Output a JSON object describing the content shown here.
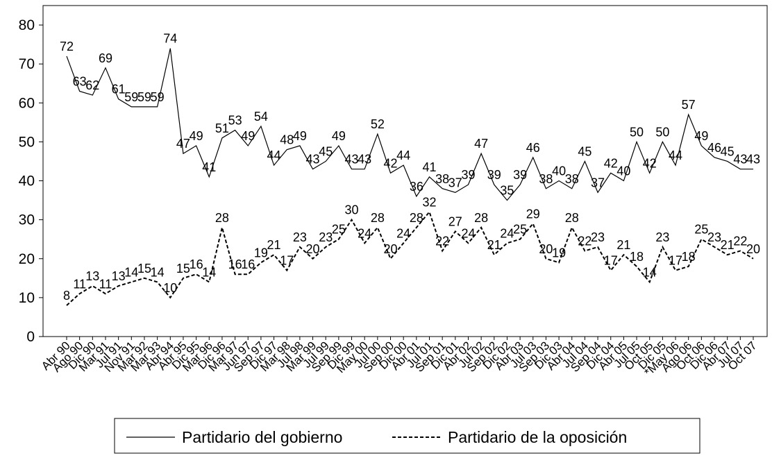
{
  "chart_data": {
    "type": "line",
    "categories": [
      "Abr 90",
      "Ago 90",
      "Dic 90",
      "Mar 91",
      "Jul 91",
      "Nov 91",
      "Mar 92",
      "Mar 93",
      "Abr 94",
      "Abr 95",
      "Dic 95",
      "Mar 96",
      "Dic 96",
      "Mar 97",
      "Jun 97",
      "Sep 97",
      "Dic 97",
      "Mar 98",
      "Jul 98",
      "Mar 99",
      "Jul 99",
      "Sep 99",
      "Dic 99",
      "May 00",
      "Jul 00",
      "Sep 00",
      "Dic 00",
      "Abr 01",
      "Jul 01",
      "Sep 01",
      "Dic 01",
      "Abr 02",
      "Jul 02",
      "Sep 02",
      "Dic 02",
      "Abr 03",
      "Jul 03",
      "Sep 03",
      "Dic 03",
      "Abr 04",
      "Jul 04",
      "Sep 04",
      "Dic 04",
      "Abr 05",
      "Jul 05",
      "Oct 05",
      "Dic 05",
      "*May 06",
      "Ago 06",
      "Oct 06",
      "Dic 06",
      "Abr 07",
      "Jul 07",
      "Oct 07"
    ],
    "series": [
      {
        "name": "Partidario del gobierno",
        "color": "#000000",
        "line_style": "solid",
        "values": [
          72,
          63,
          62,
          69,
          61,
          59,
          59,
          59,
          74,
          47,
          49,
          41,
          51,
          53,
          49,
          54,
          44,
          48,
          49,
          43,
          45,
          49,
          43,
          43,
          52,
          42,
          44,
          36,
          41,
          38,
          37,
          39,
          47,
          39,
          35,
          39,
          46,
          38,
          40,
          38,
          45,
          37,
          42,
          40,
          50,
          42,
          50,
          44,
          57,
          49,
          46,
          45,
          43,
          43
        ]
      },
      {
        "name": "Partidario de  la oposición",
        "color": "#000000",
        "line_style": "dashed",
        "values": [
          8,
          11,
          13,
          11,
          13,
          14,
          15,
          14,
          10,
          15,
          16,
          14,
          28,
          16,
          16,
          19,
          21,
          17,
          23,
          20,
          23,
          25,
          30,
          24,
          28,
          20,
          24,
          28,
          32,
          22,
          27,
          24,
          28,
          21,
          24,
          25,
          29,
          20,
          19,
          28,
          22,
          23,
          17,
          21,
          18,
          14,
          23,
          17,
          18,
          25,
          23,
          21,
          22,
          20
        ]
      }
    ],
    "ylim": [
      0,
      85
    ],
    "yticks": [
      0,
      10,
      20,
      30,
      40,
      50,
      60,
      70,
      80
    ]
  }
}
